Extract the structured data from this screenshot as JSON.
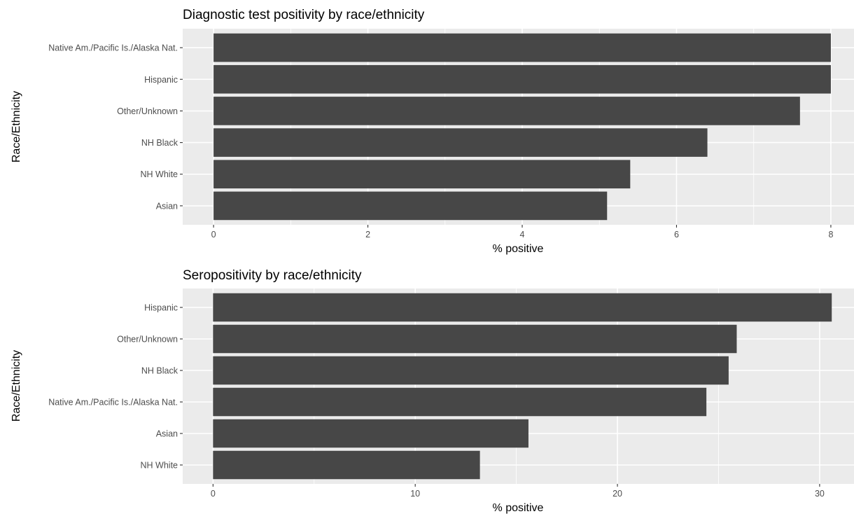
{
  "chart_data": [
    {
      "type": "bar",
      "orientation": "horizontal",
      "title": "Diagnostic test positivity by race/ethnicity",
      "xlabel": "% positive",
      "ylabel": "Race/Ethnicity",
      "categories": [
        "Native Am./Pacific Is./Alaska Nat.",
        "Hispanic",
        "Other/Unknown",
        "NH Black",
        "NH White",
        "Asian"
      ],
      "values": [
        8.0,
        8.0,
        7.6,
        6.4,
        5.4,
        5.1
      ],
      "xlim": [
        -0.4,
        8.3
      ],
      "xticks": [
        0,
        2,
        4,
        6,
        8
      ],
      "xtick_labels": [
        "0",
        "2",
        "4",
        "6",
        "8"
      ],
      "grid": true,
      "colors": {
        "bar": "#474747",
        "panel": "#ebebeb",
        "grid": "#ffffff"
      }
    },
    {
      "type": "bar",
      "orientation": "horizontal",
      "title": "Seropositivity by race/ethnicity",
      "xlabel": "% positive",
      "ylabel": "Race/Ethnicity",
      "categories": [
        "Hispanic",
        "Other/Unknown",
        "NH Black",
        "Native Am./Pacific Is./Alaska Nat.",
        "Asian",
        "NH White"
      ],
      "values": [
        30.6,
        25.9,
        25.5,
        24.4,
        15.6,
        13.2
      ],
      "xlim": [
        -1.5,
        31.7
      ],
      "xticks": [
        0,
        10,
        20,
        30
      ],
      "xtick_labels": [
        "0",
        "10",
        "20",
        "30"
      ],
      "grid": true,
      "colors": {
        "bar": "#474747",
        "panel": "#ebebeb",
        "grid": "#ffffff"
      }
    }
  ]
}
